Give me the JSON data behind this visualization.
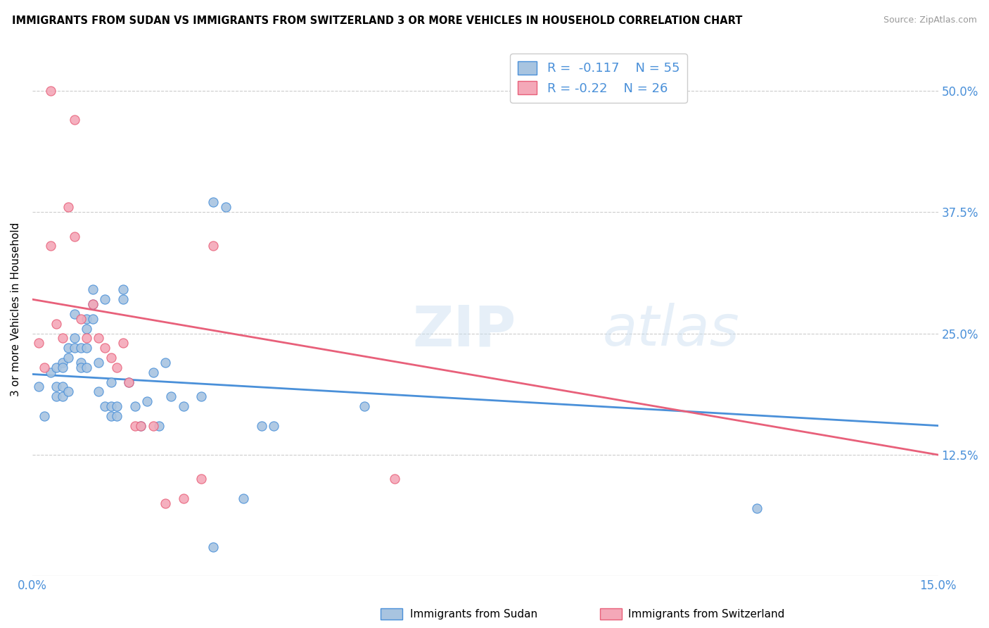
{
  "title": "IMMIGRANTS FROM SUDAN VS IMMIGRANTS FROM SWITZERLAND 3 OR MORE VEHICLES IN HOUSEHOLD CORRELATION CHART",
  "source": "Source: ZipAtlas.com",
  "ylabel": "3 or more Vehicles in Household",
  "ytick_labels": [
    "50.0%",
    "37.5%",
    "25.0%",
    "12.5%"
  ],
  "ytick_values": [
    0.5,
    0.375,
    0.25,
    0.125
  ],
  "xlim": [
    0.0,
    0.15
  ],
  "ylim": [
    0.0,
    0.55
  ],
  "watermark": "ZIPatlas",
  "sudan_R": -0.117,
  "sudan_N": 55,
  "switzerland_R": -0.22,
  "switzerland_N": 26,
  "sudan_color": "#a8c4e0",
  "switzerland_color": "#f4a8b8",
  "sudan_line_color": "#4a90d9",
  "switzerland_line_color": "#e8607a",
  "sudan_points_x": [
    0.001,
    0.002,
    0.003,
    0.004,
    0.004,
    0.004,
    0.005,
    0.005,
    0.005,
    0.005,
    0.006,
    0.006,
    0.006,
    0.007,
    0.007,
    0.007,
    0.008,
    0.008,
    0.008,
    0.009,
    0.009,
    0.009,
    0.009,
    0.01,
    0.01,
    0.01,
    0.011,
    0.011,
    0.012,
    0.012,
    0.013,
    0.013,
    0.013,
    0.014,
    0.014,
    0.015,
    0.015,
    0.016,
    0.017,
    0.018,
    0.019,
    0.02,
    0.021,
    0.022,
    0.023,
    0.025,
    0.028,
    0.03,
    0.032,
    0.035,
    0.038,
    0.04,
    0.055,
    0.12,
    0.03
  ],
  "sudan_points_y": [
    0.195,
    0.165,
    0.21,
    0.215,
    0.195,
    0.185,
    0.22,
    0.215,
    0.195,
    0.185,
    0.235,
    0.225,
    0.19,
    0.27,
    0.245,
    0.235,
    0.235,
    0.22,
    0.215,
    0.265,
    0.255,
    0.235,
    0.215,
    0.295,
    0.28,
    0.265,
    0.22,
    0.19,
    0.285,
    0.175,
    0.2,
    0.175,
    0.165,
    0.175,
    0.165,
    0.295,
    0.285,
    0.2,
    0.175,
    0.155,
    0.18,
    0.21,
    0.155,
    0.22,
    0.185,
    0.175,
    0.185,
    0.385,
    0.38,
    0.08,
    0.155,
    0.155,
    0.175,
    0.07,
    0.03
  ],
  "switzerland_points_x": [
    0.001,
    0.002,
    0.003,
    0.004,
    0.005,
    0.006,
    0.007,
    0.008,
    0.009,
    0.01,
    0.011,
    0.012,
    0.013,
    0.014,
    0.015,
    0.016,
    0.017,
    0.018,
    0.02,
    0.022,
    0.025,
    0.028,
    0.03,
    0.06,
    0.003,
    0.007
  ],
  "switzerland_points_y": [
    0.24,
    0.215,
    0.34,
    0.26,
    0.245,
    0.38,
    0.35,
    0.265,
    0.245,
    0.28,
    0.245,
    0.235,
    0.225,
    0.215,
    0.24,
    0.2,
    0.155,
    0.155,
    0.155,
    0.075,
    0.08,
    0.1,
    0.34,
    0.1,
    0.5,
    0.47
  ],
  "sudan_trend_x": [
    0.0,
    0.15
  ],
  "sudan_trend_y": [
    0.208,
    0.155
  ],
  "switzerland_trend_x": [
    0.0,
    0.15
  ],
  "switzerland_trend_y": [
    0.285,
    0.125
  ]
}
